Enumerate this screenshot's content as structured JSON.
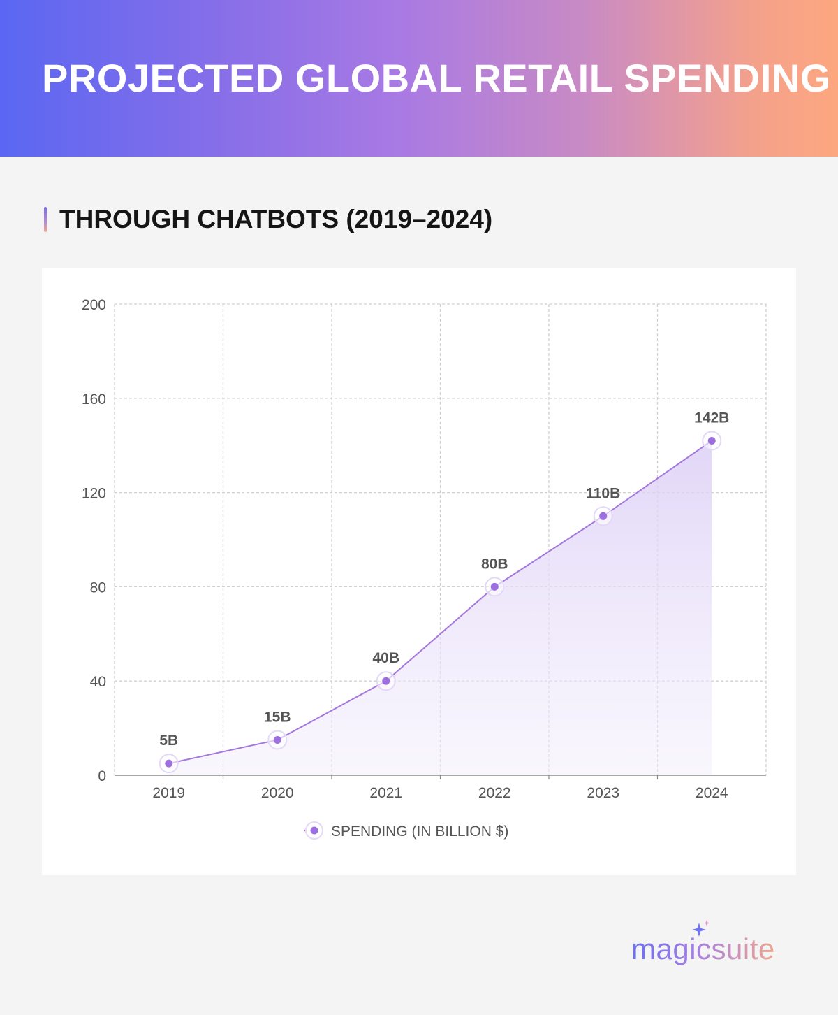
{
  "header": {
    "title": "PROJECTED GLOBAL RETAIL SPENDING",
    "subtitle": "THROUGH CHATBOTS (2019–2024)"
  },
  "brand": {
    "name": "magicsuite",
    "icon": "sparkle-icon"
  },
  "colors": {
    "line": "#a577de",
    "point": "#9d6fe0",
    "fill": "#e6dcf8",
    "label": "#555555",
    "grid": "#d0d0d0",
    "axis": "#888888"
  },
  "chart_data": {
    "type": "area",
    "categories": [
      "2019",
      "2020",
      "2021",
      "2022",
      "2023",
      "2024"
    ],
    "series": [
      {
        "name": "SPENDING (IN BILLION $)",
        "values": [
          5,
          15,
          40,
          80,
          110,
          142
        ],
        "data_labels": [
          "5B",
          "15B",
          "40B",
          "80B",
          "110B",
          "142B"
        ]
      }
    ],
    "ylim": [
      0,
      200
    ],
    "yticks": [
      "0",
      "40",
      "80",
      "120",
      "160",
      "200"
    ],
    "ytick_values": [
      0,
      40,
      80,
      120,
      160,
      200
    ],
    "title": "PROJECTED GLOBAL RETAIL SPENDING",
    "subtitle": "THROUGH CHATBOTS (2019–2024)",
    "xlabel": "",
    "ylabel": "",
    "grid": true,
    "legend": "bottom-center"
  }
}
